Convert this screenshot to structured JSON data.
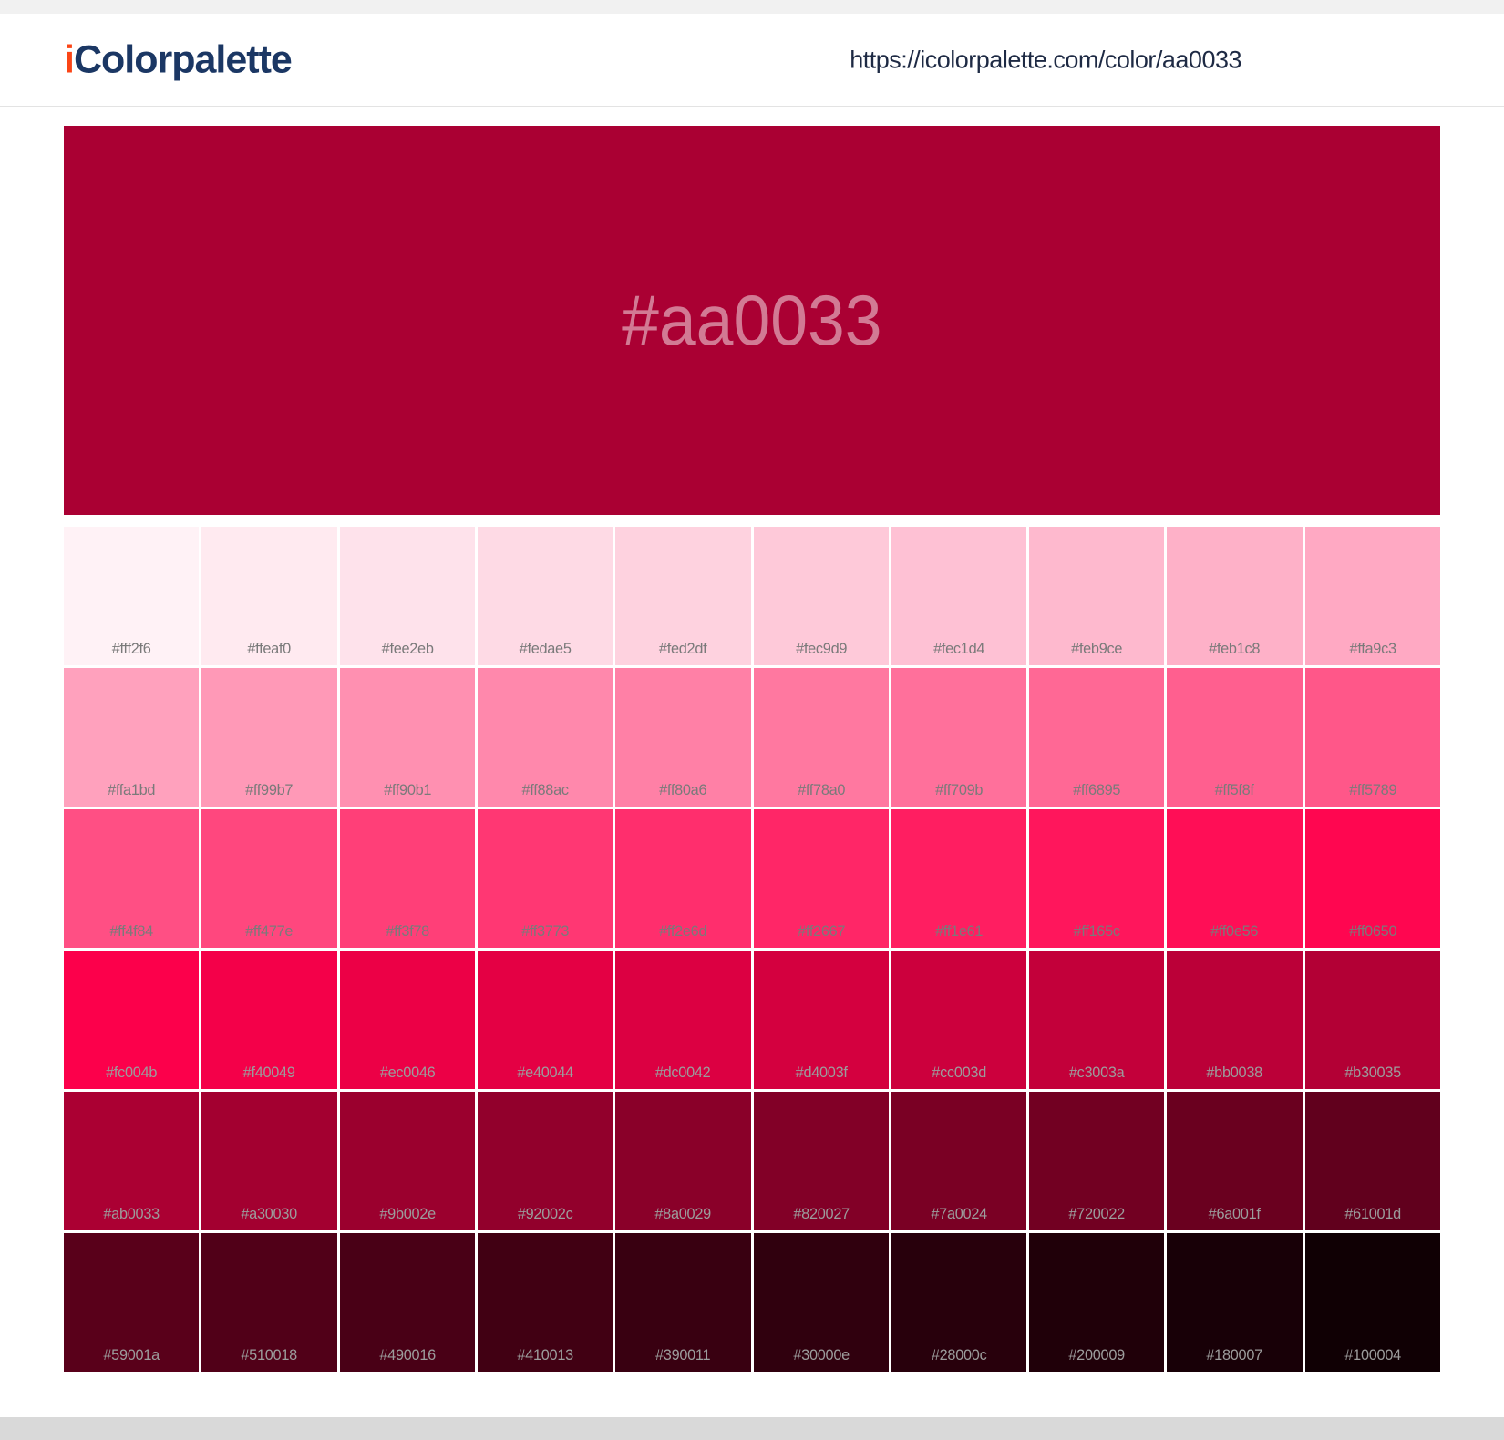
{
  "header": {
    "brand": {
      "prefix": "i",
      "name": "Colorpalette"
    },
    "url": "https://icolorpalette.com/color/aa0033"
  },
  "hero": {
    "hex_label": "#aa0033",
    "background": "#aa0033",
    "text_color": "rgba(255,255,255,0.48)"
  },
  "swatches": {
    "rows": [
      [
        "#fff2f6",
        "#ffeaf0",
        "#fee2eb",
        "#fedae5",
        "#fed2df",
        "#fec9d9",
        "#fec1d4",
        "#feb9ce",
        "#feb1c8",
        "#ffa9c3"
      ],
      [
        "#ffa1bd",
        "#ff99b7",
        "#ff90b1",
        "#ff88ac",
        "#ff80a6",
        "#ff78a0",
        "#ff709b",
        "#ff6895",
        "#ff5f8f",
        "#ff5789"
      ],
      [
        "#ff4f84",
        "#ff477e",
        "#ff3f78",
        "#ff3773",
        "#ff2e6d",
        "#ff2667",
        "#ff1e61",
        "#ff165c",
        "#ff0e56",
        "#ff0650"
      ],
      [
        "#fc004b",
        "#f40049",
        "#ec0046",
        "#e40044",
        "#dc0042",
        "#d4003f",
        "#cc003d",
        "#c3003a",
        "#bb0038",
        "#b30035"
      ],
      [
        "#ab0033",
        "#a30030",
        "#9b002e",
        "#92002c",
        "#8a0029",
        "#820027",
        "#7a0024",
        "#720022",
        "#6a001f",
        "#61001d"
      ],
      [
        "#59001a",
        "#510018",
        "#490016",
        "#410013",
        "#390011",
        "#30000e",
        "#28000c",
        "#200009",
        "#180007",
        "#100004"
      ]
    ]
  },
  "colors": {
    "brand_accent": "#fb4516",
    "brand_navy": "#1b3764",
    "url_text": "#1e2a44",
    "label_on_light_rows": "#7a7a7a",
    "label_on_dark_rows": "#9c9c9c",
    "top_strip": "#f1f1f1",
    "bottom_strip": "#d9d9d9"
  }
}
